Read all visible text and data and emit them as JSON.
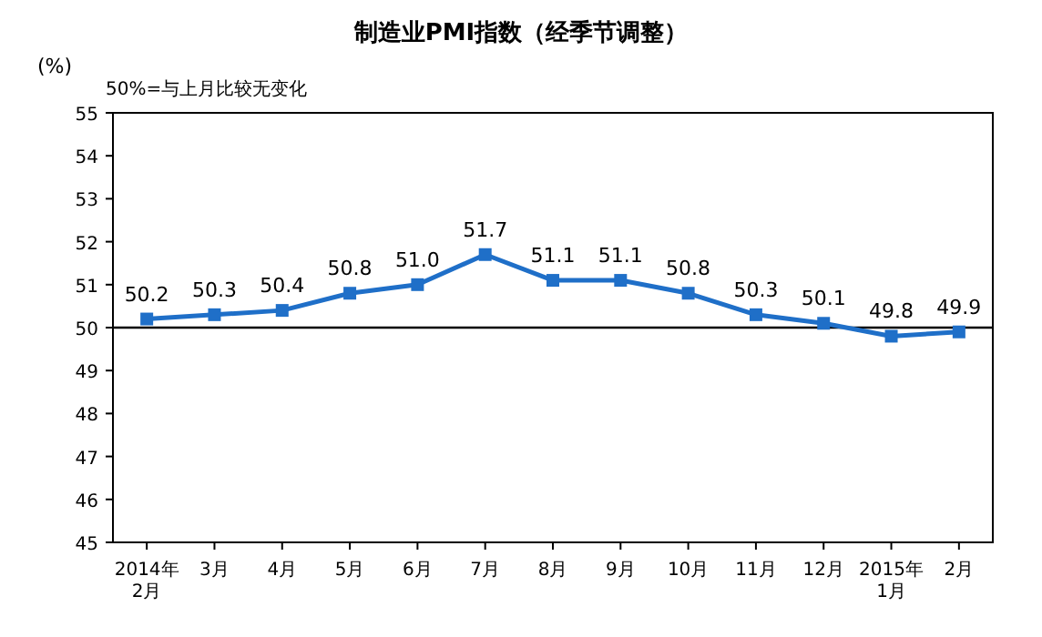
{
  "chart_data": {
    "type": "line",
    "title": "制造业PMI指数（经季节调整）",
    "ylabel": "(%)",
    "annotations": [
      "50%=与上月比较无变化"
    ],
    "categories": [
      "2014年\n2月",
      "3月",
      "4月",
      "5月",
      "6月",
      "7月",
      "8月",
      "9月",
      "10月",
      "11月",
      "12月",
      "2015年\n1月",
      "2月"
    ],
    "series": [
      {
        "color": "#1f6fc8",
        "values": [
          50.2,
          50.3,
          50.4,
          50.8,
          51.0,
          51.7,
          51.1,
          51.1,
          50.8,
          50.3,
          50.1,
          49.8,
          49.9
        ],
        "value_labels": [
          "50.2",
          "50.3",
          "50.4",
          "50.8",
          "51.0",
          "51.7",
          "51.1",
          "51.1",
          "50.8",
          "50.3",
          "50.1",
          "49.8",
          "49.9"
        ]
      }
    ],
    "ylim": [
      45,
      55
    ],
    "yticks": [
      45,
      46,
      47,
      48,
      49,
      50,
      51,
      52,
      53,
      54,
      55
    ],
    "ref_lines": [
      {
        "axis": "y",
        "value": 50,
        "color": "#000000"
      }
    ],
    "marker": "square",
    "line_style": "solid",
    "grid": false
  }
}
